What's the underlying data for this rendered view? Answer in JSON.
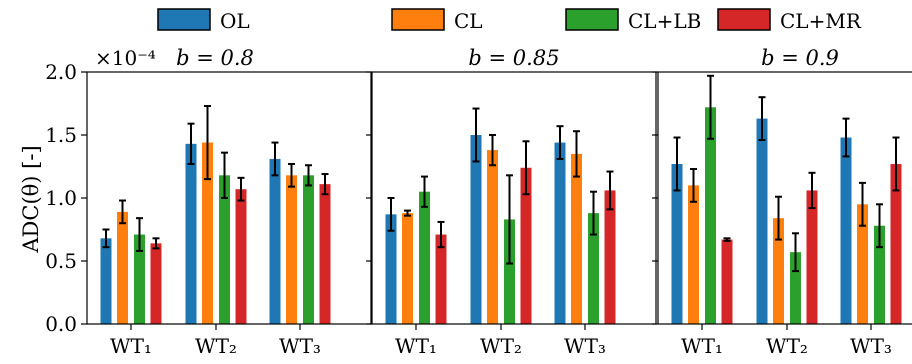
{
  "chart_data": {
    "type": "bar",
    "ylabel": "ADC(θ) [-]",
    "y_multiplier": "×10⁻⁴",
    "ylim": [
      0,
      2.0
    ],
    "yticks": [
      "0.0",
      "0.5",
      "1.0",
      "1.5",
      "2.0"
    ],
    "legend_position": "top",
    "series_meta": [
      {
        "name": "OL",
        "color": "#1f77b4"
      },
      {
        "name": "CL",
        "color": "#ff7f0e"
      },
      {
        "name": "CL+LB",
        "color": "#2ca02c"
      },
      {
        "name": "CL+MR",
        "color": "#d62728"
      }
    ],
    "panels": [
      {
        "title": "b = 0.8",
        "categories": [
          "WT₁",
          "WT₂",
          "WT₃"
        ],
        "series": [
          {
            "name": "OL",
            "values": [
              0.68,
              1.43,
              1.31
            ],
            "errors": [
              0.07,
              0.16,
              0.13
            ]
          },
          {
            "name": "CL",
            "values": [
              0.89,
              1.44,
              1.18
            ],
            "errors": [
              0.09,
              0.29,
              0.09
            ]
          },
          {
            "name": "CL+LB",
            "values": [
              0.71,
              1.18,
              1.18
            ],
            "errors": [
              0.13,
              0.18,
              0.08
            ]
          },
          {
            "name": "CL+MR",
            "values": [
              0.64,
              1.07,
              1.11
            ],
            "errors": [
              0.04,
              0.09,
              0.08
            ]
          }
        ]
      },
      {
        "title": "b = 0.85",
        "categories": [
          "WT₁",
          "WT₂",
          "WT₃"
        ],
        "series": [
          {
            "name": "OL",
            "values": [
              0.87,
              1.5,
              1.44
            ],
            "errors": [
              0.13,
              0.21,
              0.13
            ]
          },
          {
            "name": "CL",
            "values": [
              0.88,
              1.38,
              1.35
            ],
            "errors": [
              0.02,
              0.12,
              0.18
            ]
          },
          {
            "name": "CL+LB",
            "values": [
              1.05,
              0.83,
              0.88
            ],
            "errors": [
              0.12,
              0.35,
              0.17
            ]
          },
          {
            "name": "CL+MR",
            "values": [
              0.71,
              1.24,
              1.06
            ],
            "errors": [
              0.1,
              0.21,
              0.15
            ]
          }
        ]
      },
      {
        "title": "b = 0.9",
        "categories": [
          "WT₁",
          "WT₂",
          "WT₃"
        ],
        "series": [
          {
            "name": "OL",
            "values": [
              1.27,
              1.63,
              1.48
            ],
            "errors": [
              0.21,
              0.17,
              0.15
            ]
          },
          {
            "name": "CL",
            "values": [
              1.1,
              0.84,
              0.95
            ],
            "errors": [
              0.13,
              0.17,
              0.17
            ]
          },
          {
            "name": "CL+LB",
            "values": [
              1.72,
              0.57,
              0.78
            ],
            "errors": [
              0.25,
              0.15,
              0.17
            ]
          },
          {
            "name": "CL+MR",
            "values": [
              0.67,
              1.06,
              1.27
            ],
            "errors": [
              0.01,
              0.14,
              0.21
            ]
          }
        ]
      }
    ]
  }
}
